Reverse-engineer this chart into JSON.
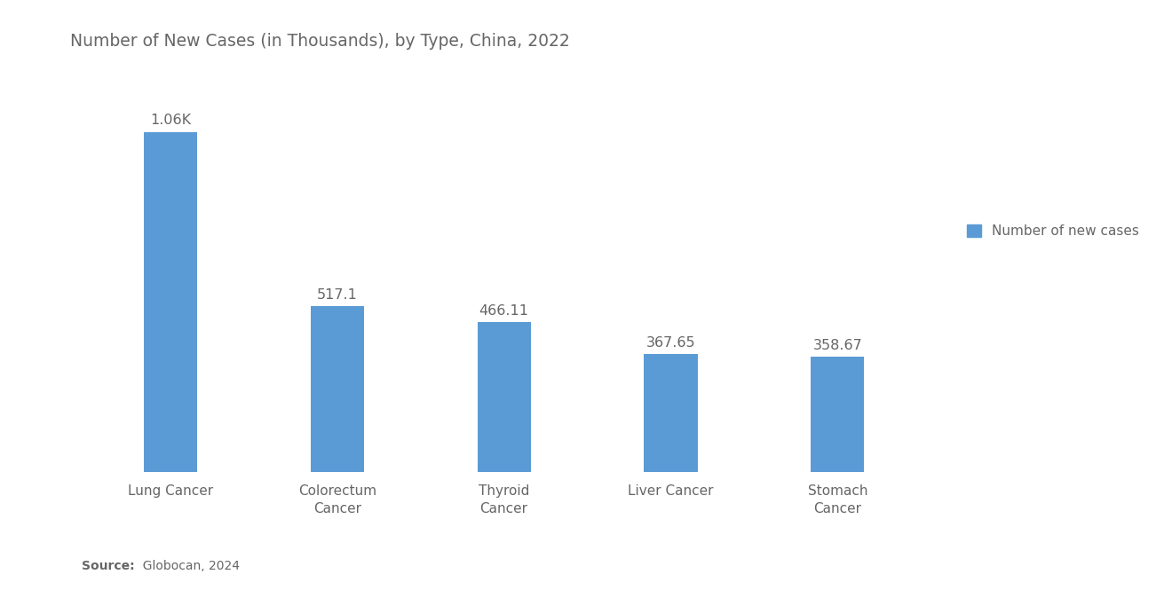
{
  "title": "Number of New Cases (in Thousands), by Type, China, 2022",
  "categories": [
    "Lung Cancer",
    "Colorectum\nCancer",
    "Thyroid\nCancer",
    "Liver Cancer",
    "Stomach\nCancer"
  ],
  "values": [
    1060,
    517.1,
    466.11,
    367.65,
    358.67
  ],
  "bar_labels": [
    "1.06K",
    "517.1",
    "466.11",
    "367.65",
    "358.67"
  ],
  "bar_color": "#5B9BD5",
  "background_color": "#FFFFFF",
  "legend_label": "Number of new cases",
  "legend_color": "#5B9BD5",
  "source_bold": "Source:",
  "source_rest": "  Globocan, 2024",
  "title_fontsize": 13.5,
  "label_fontsize": 11.5,
  "tick_fontsize": 11,
  "source_fontsize": 10,
  "legend_fontsize": 11,
  "ylim": [
    0,
    1250
  ],
  "bar_width": 0.32,
  "text_color": "#666666"
}
